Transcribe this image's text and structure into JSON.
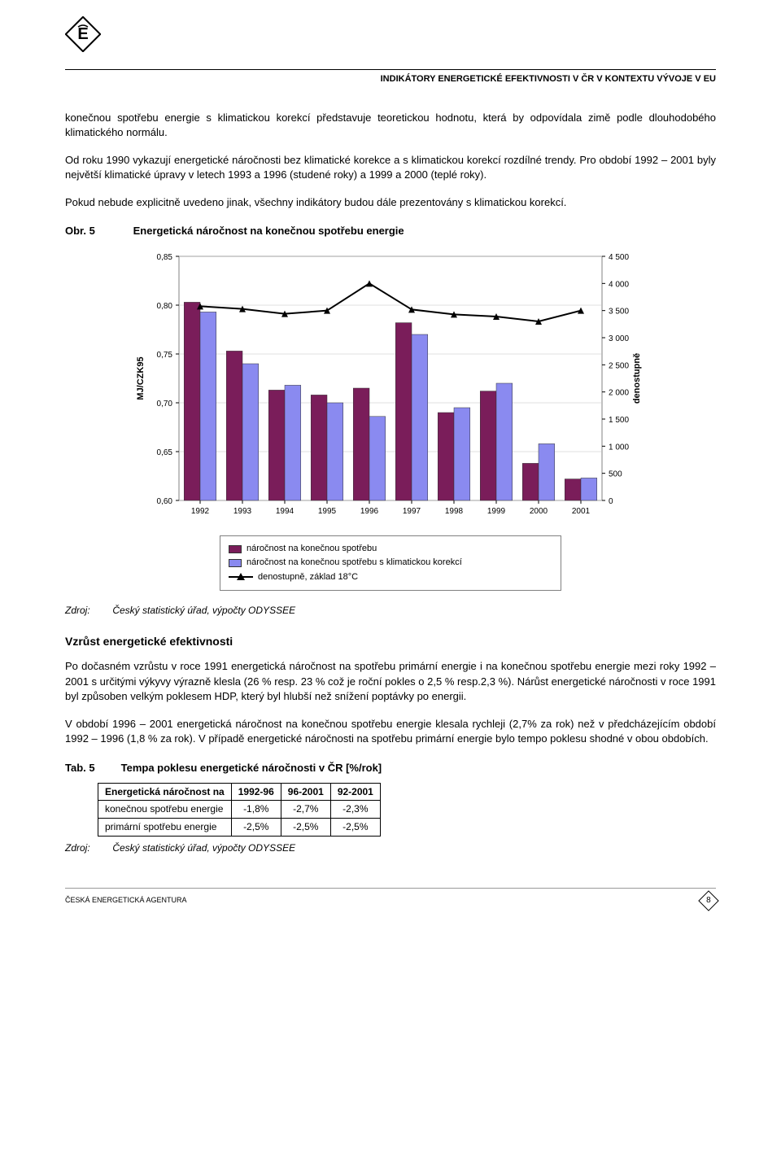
{
  "header": {
    "title": "INDIKÁTORY ENERGETICKÉ EFEKTIVNOSTI V ČR V KONTEXTU VÝVOJE V EU"
  },
  "paragraphs": {
    "p1": "konečnou spotřebu energie s klimatickou korekcí představuje teoretickou hodnotu, která by odpovídala zimě podle dlouhodobého klimatického normálu.",
    "p2": "Od roku 1990 vykazují energetické náročnosti bez klimatické korekce a s klimatickou korekcí rozdílné trendy. Pro období 1992 – 2001 byly největší klimatické úpravy v letech 1993 a 1996 (studené roky) a 1999 a 2000 (teplé roky).",
    "p3": "Pokud nebude explicitně uvedeno jinak, všechny indikátory budou dále prezentovány s klimatickou korekcí.",
    "p4": "Po dočasném vzrůstu v roce 1991 energetická náročnost na spotřebu primární energie i na konečnou spotřebu energie mezi roky 1992 – 2001 s určitými výkyvy výrazně klesla (26 % resp. 23 % což je roční pokles o 2,5 % resp.2,3 %). Nárůst energetické náročnosti v roce 1991 byl způsoben velkým poklesem HDP, který byl hlubší než snížení poptávky po energii.",
    "p5": "V období 1996 – 2001 energetická náročnost na konečnou spotřebu energie klesala rychleji (2,7% za rok) než v předcházejícím období 1992 – 1996 (1,8 % za rok). V případě energetické náročnosti na spotřebu primární energie bylo tempo poklesu shodné v obou obdobích."
  },
  "figure": {
    "label": "Obr. 5",
    "title": "Energetická náročnost na konečnou spotřebu energie",
    "y1_label": "MJ/CZK95",
    "y2_label": "denostupně",
    "categories": [
      "1992",
      "1993",
      "1994",
      "1995",
      "1996",
      "1997",
      "1998",
      "1999",
      "2000",
      "2001"
    ],
    "series_bar1": {
      "name": "náročnost na konečnou spotřebu",
      "color": "#7a1d5a",
      "values": [
        0.803,
        0.753,
        0.713,
        0.708,
        0.715,
        0.782,
        0.69,
        0.712,
        0.638,
        0.622
      ]
    },
    "series_bar2": {
      "name": "náročnost na konečnou spotřebu s klimatickou korekcí",
      "color": "#8a8af0",
      "values": [
        0.793,
        0.74,
        0.718,
        0.7,
        0.686,
        0.77,
        0.695,
        0.72,
        0.658,
        0.623
      ]
    },
    "series_line": {
      "name": "denostupně, základ 18°C",
      "color": "#000000",
      "values": [
        3580,
        3530,
        3440,
        3500,
        4000,
        3520,
        3430,
        3390,
        3300,
        3500
      ]
    },
    "y1_lim": [
      0.6,
      0.85
    ],
    "y1_ticks": [
      "0,60",
      "0,65",
      "0,70",
      "0,75",
      "0,80",
      "0,85"
    ],
    "y2_lim": [
      0,
      4500
    ],
    "y2_ticks": [
      "0",
      "500",
      "1 000",
      "1 500",
      "2 000",
      "2 500",
      "3 000",
      "3 500",
      "4 000",
      "4 500"
    ],
    "plot_bg": "#ffffff",
    "plot_border": "#808080",
    "grid_color": "#c0c0c0",
    "bar_width": 0.38,
    "tick_fontsize": 10,
    "axis_label_fontsize": 11,
    "marker_style": "triangle",
    "marker_size": 8,
    "line_width": 2,
    "bar_border": "#333333"
  },
  "legend": {
    "item1": "náročnost na konečnou spotřebu",
    "item2": "náročnost na konečnou spotřebu s klimatickou korekcí",
    "item3": "denostupně, základ 18°C"
  },
  "source": {
    "label": "Zdroj:",
    "text": "Český statistický úřad, výpočty ODYSSEE"
  },
  "section_h": "Vzrůst energetické efektivnosti",
  "table": {
    "label": "Tab. 5",
    "title": "Tempa poklesu energetické náročnosti v ČR [%/rok]",
    "header_row": [
      "Energetická náročnost na",
      "1992-96",
      "96-2001",
      "92-2001"
    ],
    "rows": [
      [
        "konečnou spotřebu energie",
        "-1,8%",
        "-2,7%",
        "-2,3%"
      ],
      [
        "primární spotřebu energie",
        "-2,5%",
        "-2,5%",
        "-2,5%"
      ]
    ]
  },
  "footer": {
    "agency": "ČESKÁ ENERGETICKÁ AGENTURA",
    "page": "8"
  }
}
